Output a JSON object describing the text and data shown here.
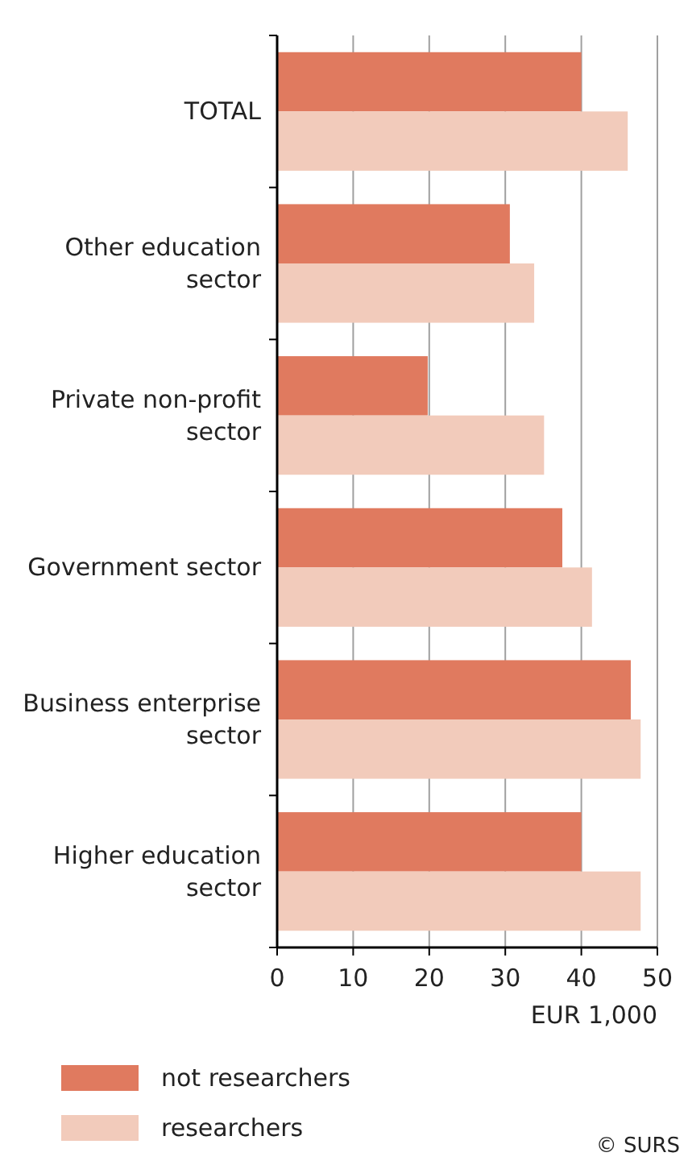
{
  "chart_data": {
    "type": "bar",
    "orientation": "horizontal",
    "categories": [
      "TOTAL",
      "Other education sector",
      "Private non-profit sector",
      "Government sector",
      "Business enterprise sector",
      "Higher education sector"
    ],
    "series": [
      {
        "name": "not researchers",
        "color": "#e07a5f",
        "values": [
          40.0,
          30.6,
          19.8,
          37.5,
          46.5,
          40.0
        ]
      },
      {
        "name": "researchers",
        "color": "#f2cbbb",
        "values": [
          46.1,
          33.8,
          35.1,
          41.4,
          47.8,
          47.8
        ]
      }
    ],
    "xlim": [
      0,
      50
    ],
    "xticks": [
      0,
      10,
      20,
      30,
      40,
      50
    ],
    "xlabel": "EUR 1,000",
    "grid": "x",
    "legend": "bottom left",
    "annotations": [
      "© SURS"
    ]
  }
}
